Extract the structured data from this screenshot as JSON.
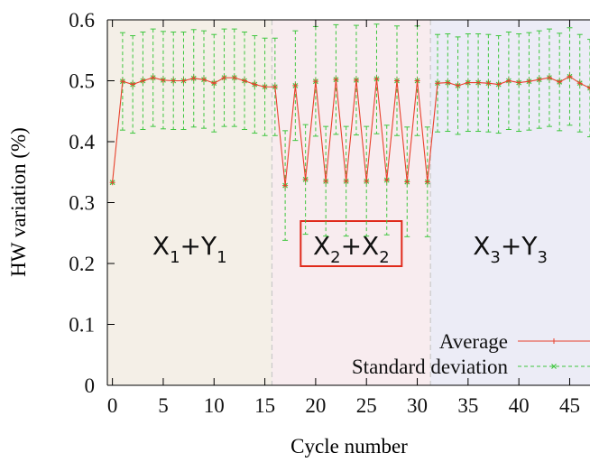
{
  "chart_data": {
    "type": "line",
    "xlabel": "Cycle number",
    "ylabel": "HW variation (%)",
    "xlim": [
      -0.5,
      47
    ],
    "ylim": [
      0,
      0.6
    ],
    "x_ticks": [
      "0",
      "5",
      "10",
      "15",
      "20",
      "25",
      "30",
      "35",
      "40",
      "45"
    ],
    "y_ticks": [
      "0",
      "0.1",
      "0.2",
      "0.3",
      "0.4",
      "0.5",
      "0.6"
    ],
    "grid": false,
    "legend_position": "bottom-right",
    "regions": [
      {
        "label_base1": "X",
        "label_sub1": "1",
        "label_mid": "+",
        "label_base2": "Y",
        "label_sub2": "1",
        "x_range": [
          -0.5,
          15.7
        ],
        "color": "#f4efe7",
        "highlight": false
      },
      {
        "label_base1": "X",
        "label_sub1": "2",
        "label_mid": "+",
        "label_base2": "X",
        "label_sub2": "2",
        "x_range": [
          15.7,
          31.3
        ],
        "color": "#f8ecef",
        "highlight": true
      },
      {
        "label_base1": "X",
        "label_sub1": "3",
        "label_mid": "+",
        "label_base2": "Y",
        "label_sub2": "3",
        "x_range": [
          31.3,
          47
        ],
        "color": "#ececf6",
        "highlight": false
      }
    ],
    "x": [
      0,
      1,
      2,
      3,
      4,
      5,
      6,
      7,
      8,
      9,
      10,
      11,
      12,
      13,
      14,
      15,
      16,
      17,
      18,
      19,
      20,
      21,
      22,
      23,
      24,
      25,
      26,
      27,
      28,
      29,
      30,
      31,
      32,
      33,
      34,
      35,
      36,
      37,
      38,
      39,
      40,
      41,
      42,
      43,
      44,
      45,
      46,
      47
    ],
    "series": [
      {
        "name": "Average",
        "color": "#e8412c",
        "values": [
          0.333,
          0.499,
          0.494,
          0.5,
          0.505,
          0.501,
          0.5,
          0.5,
          0.504,
          0.502,
          0.496,
          0.505,
          0.505,
          0.5,
          0.494,
          0.49,
          0.49,
          0.328,
          0.492,
          0.338,
          0.499,
          0.335,
          0.502,
          0.335,
          0.501,
          0.335,
          0.503,
          0.337,
          0.5,
          0.334,
          0.5,
          0.334,
          0.496,
          0.497,
          0.492,
          0.497,
          0.497,
          0.496,
          0.494,
          0.5,
          0.497,
          0.499,
          0.502,
          0.505,
          0.498,
          0.507,
          0.496,
          0.488
        ]
      },
      {
        "name": "Standard deviation",
        "color": "#3ec63e",
        "std": [
          0.0,
          0.08,
          0.08,
          0.08,
          0.08,
          0.08,
          0.08,
          0.08,
          0.08,
          0.08,
          0.08,
          0.08,
          0.08,
          0.08,
          0.08,
          0.08,
          0.08,
          0.09,
          0.09,
          0.09,
          0.09,
          0.09,
          0.09,
          0.09,
          0.09,
          0.09,
          0.09,
          0.09,
          0.09,
          0.09,
          0.09,
          0.09,
          0.08,
          0.08,
          0.08,
          0.08,
          0.08,
          0.08,
          0.08,
          0.08,
          0.08,
          0.08,
          0.08,
          0.08,
          0.08,
          0.08,
          0.08,
          0.08
        ]
      }
    ]
  }
}
